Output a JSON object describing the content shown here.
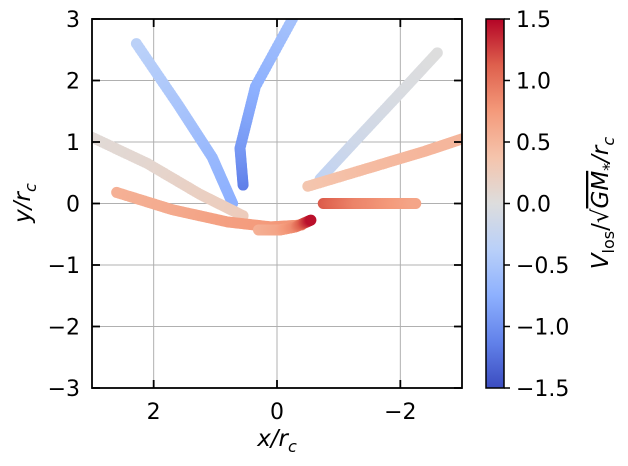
{
  "chart_data": {
    "type": "scatter",
    "xlabel_base": "x/r",
    "xlabel_sub": "c",
    "ylabel_base": "y/r",
    "ylabel_sub": "c",
    "xlim": [
      3,
      -3
    ],
    "ylim": [
      -3,
      3
    ],
    "x_inverted": true,
    "grid": true,
    "xticks": [
      2,
      0,
      -2
    ],
    "yticks": [
      3,
      2,
      1,
      0,
      -1,
      -2,
      -3
    ],
    "colorbar": {
      "label_prefix": "V",
      "label_sub": "los",
      "label_sqrt": "GM",
      "label_sqrt_sub": "*",
      "label_tail": "/r",
      "label_tail_sub": "c",
      "cmap": "coolwarm",
      "vmin": -1.5,
      "vmax": 1.5,
      "ticks": [
        1.5,
        1.0,
        0.5,
        0.0,
        -0.5,
        -1.0,
        -1.5
      ],
      "tick_labels": [
        "1.5",
        "1.0",
        "0.5",
        "0.0",
        "−0.5",
        "−1.0",
        "−1.5"
      ]
    },
    "series": [
      {
        "points": [
          [
            2.28,
            2.6,
            -0.35
          ],
          [
            1.6,
            1.6,
            -0.5
          ],
          [
            1.05,
            0.75,
            -0.65
          ],
          [
            0.72,
            0.0,
            -0.75
          ]
        ]
      },
      {
        "points": [
          [
            0.55,
            0.3,
            -1.15
          ],
          [
            0.6,
            0.9,
            -0.95
          ],
          [
            0.35,
            1.9,
            -0.75
          ],
          [
            -0.25,
            3.0,
            -0.55
          ]
        ]
      },
      {
        "points": [
          [
            3.05,
            1.1,
            0.05
          ],
          [
            2.1,
            0.65,
            0.1
          ],
          [
            1.25,
            0.15,
            0.2
          ],
          [
            0.55,
            -0.2,
            0.25
          ]
        ]
      },
      {
        "points": [
          [
            2.6,
            0.18,
            0.55
          ],
          [
            1.7,
            -0.1,
            0.6
          ],
          [
            0.8,
            -0.3,
            0.7
          ],
          [
            0.1,
            -0.38,
            0.75
          ],
          [
            -0.4,
            -0.35,
            0.8
          ]
        ]
      },
      {
        "points": [
          [
            0.3,
            -0.43,
            0.55
          ],
          [
            -0.05,
            -0.43,
            0.65
          ],
          [
            -0.3,
            -0.38,
            0.85
          ],
          [
            -0.55,
            -0.27,
            1.45
          ]
        ]
      },
      {
        "points": [
          [
            -0.7,
            0.4,
            -0.3
          ],
          [
            -1.3,
            1.05,
            -0.15
          ],
          [
            -2.0,
            1.8,
            -0.05
          ],
          [
            -2.6,
            2.45,
            0.0
          ]
        ]
      },
      {
        "points": [
          [
            -0.5,
            0.28,
            0.35
          ],
          [
            -1.5,
            0.58,
            0.45
          ],
          [
            -2.4,
            0.85,
            0.5
          ],
          [
            -3.0,
            1.05,
            0.5
          ]
        ]
      },
      {
        "points": [
          [
            -0.75,
            0.0,
            1.15
          ],
          [
            -1.3,
            0.0,
            0.9
          ],
          [
            -1.9,
            0.0,
            0.75
          ],
          [
            -2.25,
            0.0,
            0.65
          ]
        ]
      }
    ]
  }
}
